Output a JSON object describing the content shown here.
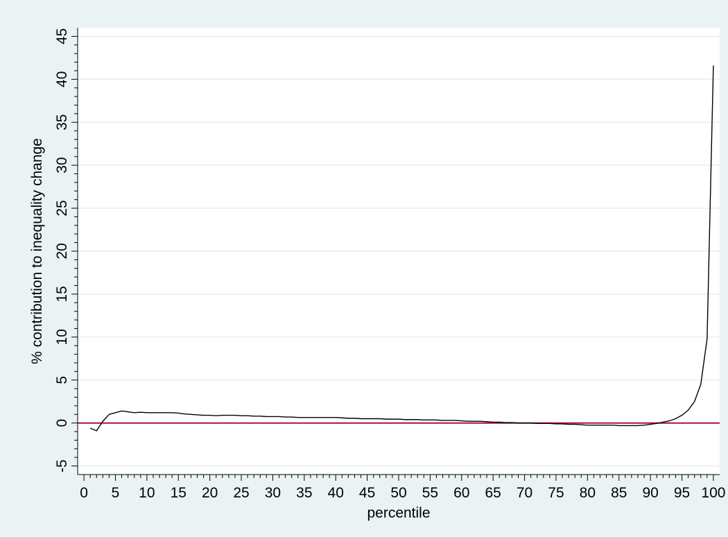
{
  "chart_data": {
    "type": "line",
    "title": "",
    "xlabel": "percentile",
    "ylabel": "% contribution to inequality change",
    "xlim": [
      -1,
      101
    ],
    "ylim": [
      -6,
      46
    ],
    "x_ticks": [
      0,
      5,
      10,
      15,
      20,
      25,
      30,
      35,
      40,
      45,
      50,
      55,
      60,
      65,
      70,
      75,
      80,
      85,
      90,
      95,
      100
    ],
    "y_ticks": [
      -5,
      0,
      5,
      10,
      15,
      20,
      25,
      30,
      35,
      40,
      45
    ],
    "grid": true,
    "reference_line": {
      "y": 0,
      "color": "#b0103a"
    },
    "colors": {
      "background": "#eaf2f3",
      "plot_area": "#ffffff",
      "grid": "#e6eef0",
      "series": "#000000"
    },
    "series": [
      {
        "x": [
          1,
          2,
          3,
          4,
          5,
          6,
          7,
          8,
          9,
          10,
          11,
          12,
          13,
          14,
          15,
          16,
          17,
          18,
          19,
          20,
          21,
          22,
          23,
          24,
          25,
          26,
          27,
          28,
          29,
          30,
          31,
          32,
          33,
          34,
          35,
          36,
          37,
          38,
          39,
          40,
          41,
          42,
          43,
          44,
          45,
          46,
          47,
          48,
          49,
          50,
          51,
          52,
          53,
          54,
          55,
          56,
          57,
          58,
          59,
          60,
          61,
          62,
          63,
          64,
          65,
          66,
          67,
          68,
          69,
          70,
          71,
          72,
          73,
          74,
          75,
          76,
          77,
          78,
          79,
          80,
          81,
          82,
          83,
          84,
          85,
          86,
          87,
          88,
          89,
          90,
          91,
          92,
          93,
          94,
          95,
          96,
          97,
          98,
          99,
          100
        ],
        "values": [
          -0.6,
          -0.9,
          0.2,
          1.0,
          1.2,
          1.4,
          1.3,
          1.2,
          1.25,
          1.2,
          1.2,
          1.2,
          1.2,
          1.2,
          1.15,
          1.05,
          1.0,
          0.95,
          0.9,
          0.9,
          0.85,
          0.9,
          0.9,
          0.9,
          0.85,
          0.85,
          0.8,
          0.8,
          0.75,
          0.75,
          0.75,
          0.7,
          0.7,
          0.65,
          0.65,
          0.65,
          0.65,
          0.65,
          0.65,
          0.65,
          0.6,
          0.55,
          0.55,
          0.5,
          0.5,
          0.5,
          0.5,
          0.45,
          0.45,
          0.45,
          0.4,
          0.4,
          0.4,
          0.35,
          0.35,
          0.35,
          0.3,
          0.3,
          0.3,
          0.25,
          0.2,
          0.2,
          0.2,
          0.15,
          0.1,
          0.1,
          0.05,
          0.05,
          0.0,
          0.0,
          0.0,
          -0.05,
          -0.05,
          -0.05,
          -0.1,
          -0.1,
          -0.15,
          -0.15,
          -0.2,
          -0.25,
          -0.25,
          -0.25,
          -0.25,
          -0.25,
          -0.3,
          -0.3,
          -0.3,
          -0.3,
          -0.25,
          -0.15,
          -0.05,
          0.1,
          0.25,
          0.5,
          0.9,
          1.5,
          2.5,
          4.5,
          9.8,
          41.6
        ]
      }
    ]
  }
}
